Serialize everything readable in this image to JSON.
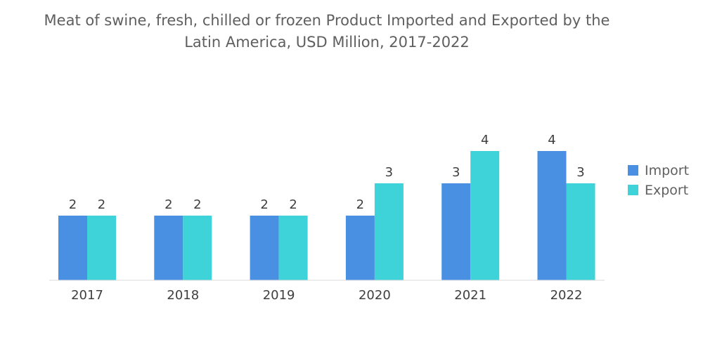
{
  "chart_data": {
    "type": "bar",
    "title": "Meat of swine, fresh, chilled or frozen Product Imported and Exported by the Latin America, USD Million, 2017-2022",
    "title_lines": [
      "Meat of swine, fresh, chilled or frozen Product Imported and Exported by the",
      "Latin America, USD Million, 2017-2022"
    ],
    "categories": [
      "2017",
      "2018",
      "2019",
      "2020",
      "2021",
      "2022"
    ],
    "series": [
      {
        "name": "Import",
        "values": [
          2,
          2,
          2,
          2,
          3,
          4
        ],
        "color": "#4a90e2"
      },
      {
        "name": "Export",
        "values": [
          2,
          2,
          2,
          3,
          4,
          3
        ],
        "color": "#3ed3d8"
      }
    ],
    "xlabel": "",
    "ylabel": "",
    "ylim": [
      0,
      4
    ],
    "grid": false,
    "legend_position": "right",
    "data_labels": true
  }
}
